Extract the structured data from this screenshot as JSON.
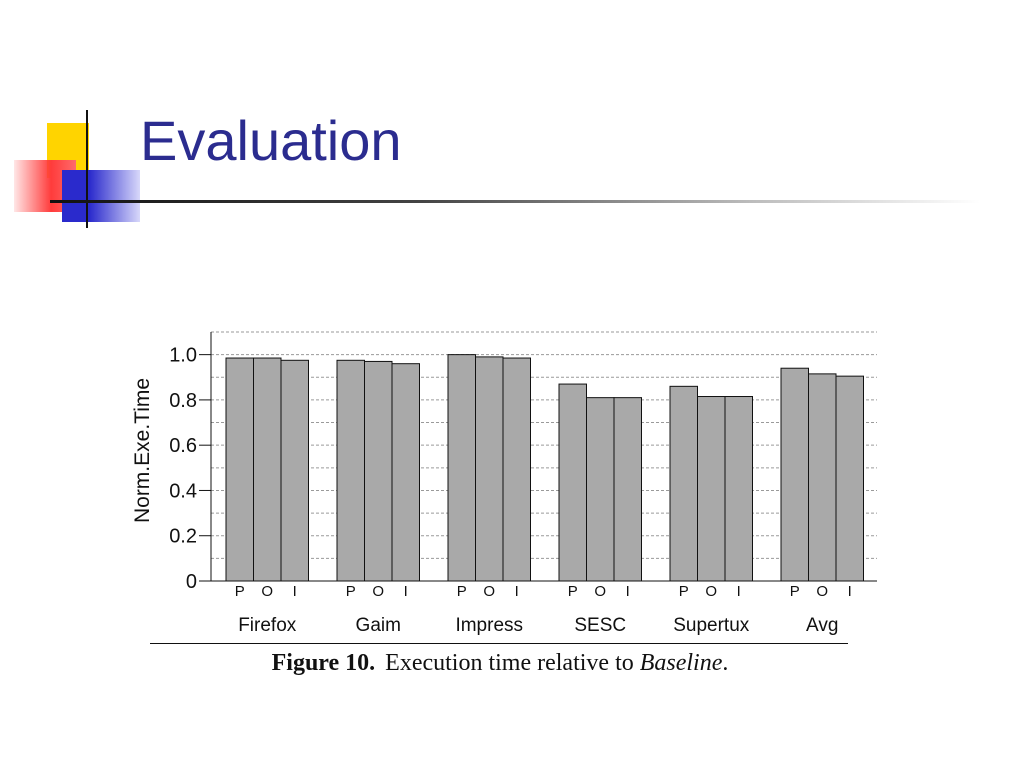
{
  "slide": {
    "title": "Evaluation"
  },
  "chart_data": {
    "type": "bar",
    "ylabel": "Norm.Exe.Time",
    "ylim": [
      0,
      1.1
    ],
    "yticks": [
      {
        "value": 0,
        "label": "0"
      },
      {
        "value": 0.2,
        "label": "0.2"
      },
      {
        "value": 0.4,
        "label": "0.4"
      },
      {
        "value": 0.6,
        "label": "0.6"
      },
      {
        "value": 0.8,
        "label": "0.8"
      },
      {
        "value": 1.0,
        "label": "1.0"
      }
    ],
    "gridlines": [
      0.1,
      0.2,
      0.3,
      0.4,
      0.5,
      0.6,
      0.7,
      0.8,
      0.9,
      1.0,
      1.1
    ],
    "grid": true,
    "bar_color": "#a9a9a9",
    "sub_categories": [
      "P",
      "O",
      "I"
    ],
    "groups": [
      {
        "name": "Firefox",
        "values": [
          0.985,
          0.985,
          0.975
        ]
      },
      {
        "name": "Gaim",
        "values": [
          0.975,
          0.97,
          0.96
        ]
      },
      {
        "name": "Impress",
        "values": [
          1.0,
          0.99,
          0.985
        ]
      },
      {
        "name": "SESC",
        "values": [
          0.87,
          0.81,
          0.81
        ]
      },
      {
        "name": "Supertux",
        "values": [
          0.86,
          0.815,
          0.815
        ]
      },
      {
        "name": "Avg",
        "values": [
          0.94,
          0.915,
          0.905
        ]
      }
    ]
  },
  "caption": {
    "figure": "Figure 10.",
    "text": "Execution time relative to",
    "italic": "Baseline",
    "end": "."
  }
}
